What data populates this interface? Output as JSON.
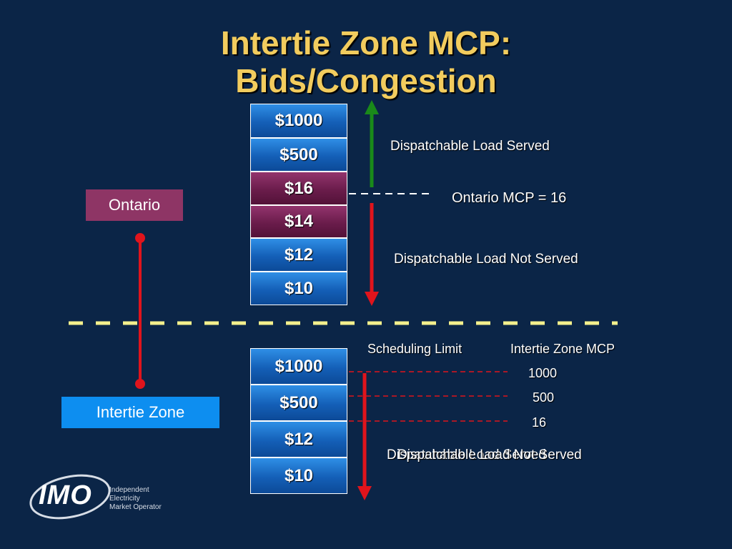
{
  "title": {
    "line1": "Intertie Zone MCP:",
    "line2": "Bids/Congestion"
  },
  "ontario": {
    "zone_label": "Ontario",
    "bids": [
      "$1000",
      "$500",
      "$16",
      "$14",
      "$12",
      "$10"
    ],
    "highlighted_bids": [
      "$16",
      "$14"
    ],
    "served_label": "Dispatchable Load Served",
    "mcp_label": "Ontario MCP = 16",
    "not_served_label": "Dispatchable Load Not Served"
  },
  "intertie": {
    "zone_label": "Intertie Zone",
    "bids": [
      "$1000",
      "$500",
      "$12",
      "$10"
    ],
    "scheduling_limit_header": "Scheduling Limit",
    "mcp_header": "Intertie Zone MCP",
    "mcp_values": [
      "1000",
      "500",
      "16"
    ],
    "overlap_label_a": "Dispatchable Load Served",
    "overlap_label_b": "Dispatchable Load Not Served"
  },
  "logo": {
    "mark": "IMO",
    "line1": "Independent",
    "line2": "Electricity",
    "line3": "Market Operator"
  },
  "colors": {
    "background": "#0b2547",
    "title": "#f2cc5e",
    "cell_blue": "#1b6ccb",
    "cell_purple": "#6a1c4b",
    "ontario_box": "#8e3565",
    "intertie_box": "#0d8ef0",
    "served_arrow": "#1a8a1a",
    "not_served_arrow": "#e0141c",
    "divider": "#f4f08c"
  }
}
